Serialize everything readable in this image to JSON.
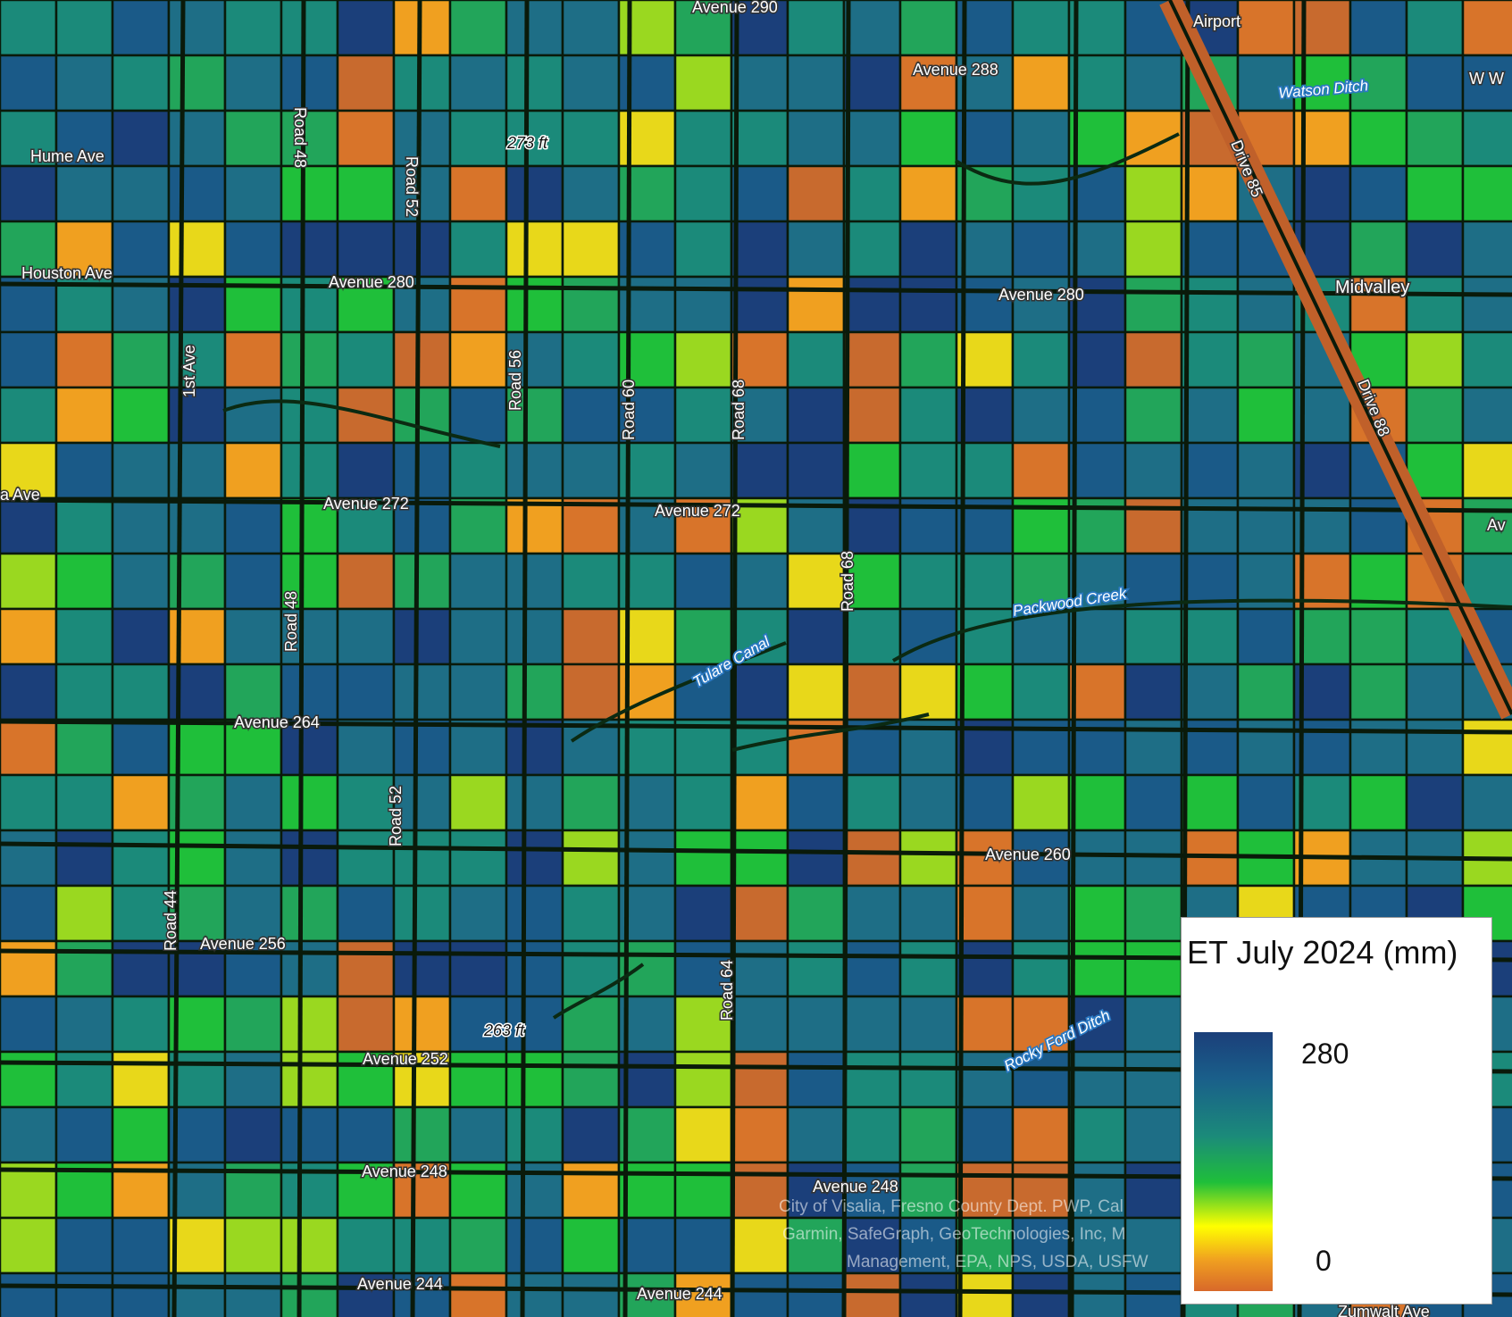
{
  "labels": {
    "roads": [
      "Avenue 290",
      "Avenue 288",
      "Hume Ave",
      "Road 48",
      "Road 52",
      "Houston Ave",
      "Avenue 280",
      "Avenue 280",
      "Midvalley",
      "W W",
      "1st Ave",
      "Road 56",
      "Road 60",
      "Road 68",
      "Drive 85",
      "Drive 88",
      "a Ave",
      "Avenue 272",
      "Avenue 272",
      "Road 68",
      "Road 48",
      "Avenue 264",
      "Road 52",
      "Avenue 260",
      "Road 44",
      "Avenue 256",
      "Road 64",
      "Avenue 252",
      "Avenue 248",
      "Avenue 248",
      "Avenue 244",
      "Avenue 244",
      "Av",
      "Zumwalt Ave"
    ],
    "places": [
      "Airport"
    ],
    "water": [
      "Watson Ditch",
      "Packwood Creek",
      "Tulare Canal",
      "Rocky Ford Ditch"
    ],
    "elevations": [
      "273 ft",
      "263 ft"
    ]
  },
  "attribution": [
    "City of Visalia, Fresno County Dept. PWP, Cal",
    "Garmin, SafeGraph, GeoTechnologies, Inc, M",
    "Management, EPA, NPS, USDA, USFW"
  ],
  "legend": {
    "title": "ET July 2024 (mm)",
    "max": "280",
    "min": "0",
    "colors": [
      "#1b3f7a",
      "#1b8a7a",
      "#1fbf3a",
      "#ffff00",
      "#d8682a"
    ]
  }
}
